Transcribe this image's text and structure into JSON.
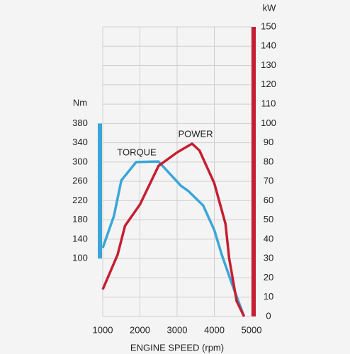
{
  "chart_data": {
    "type": "line",
    "x_label": "ENGINE SPEED (rpm)",
    "y_label": "Nm",
    "y2_label": "kW",
    "xlim": [
      1000,
      5000
    ],
    "xticks": [
      1000,
      2000,
      3000,
      4000,
      5000
    ],
    "ylim": [
      -20,
      580
    ],
    "yticks": [
      100,
      140,
      180,
      220,
      260,
      300,
      340,
      380
    ],
    "y2lim": [
      0,
      150
    ],
    "y2ticks": [
      0,
      10,
      20,
      30,
      40,
      50,
      60,
      70,
      80,
      90,
      100,
      110,
      120,
      130,
      140,
      150
    ],
    "grid": true,
    "series": [
      {
        "name": "TORQUE",
        "color": "#3aa6d8",
        "axis": "y",
        "x": [
          1000,
          1300,
          1500,
          1900,
          2500,
          2800,
          3100,
          3300,
          3700,
          4000,
          4200,
          4500,
          4800
        ],
        "values": [
          122,
          188,
          262,
          300,
          301,
          276,
          251,
          240,
          210,
          159,
          108,
          42,
          -20
        ]
      },
      {
        "name": "POWER",
        "color": "#c51f31",
        "axis": "y2",
        "x": [
          1000,
          1400,
          1600,
          2000,
          2500,
          3000,
          3400,
          3600,
          4000,
          4300,
          4400,
          4600,
          4800
        ],
        "values": [
          14,
          32,
          47,
          58,
          78,
          85,
          89.5,
          86,
          69,
          48,
          30,
          8,
          0
        ]
      }
    ]
  }
}
